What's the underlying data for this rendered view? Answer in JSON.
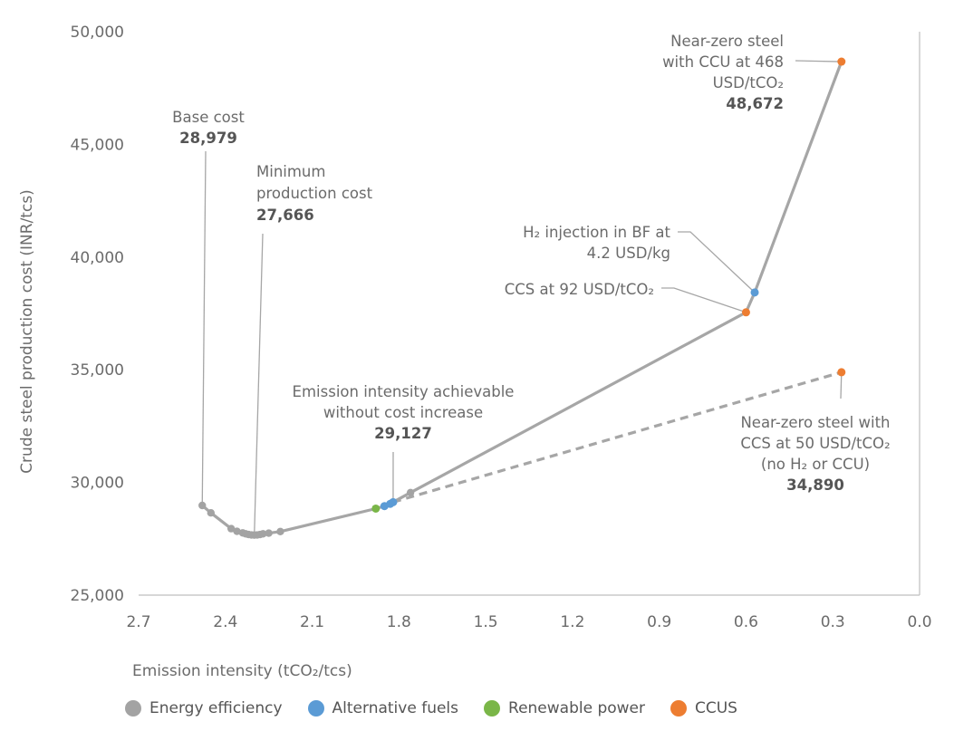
{
  "chart_data": {
    "type": "line",
    "xlabel": "Emission intensity (tCO₂/tcs)",
    "ylabel": "Crude steel production cost (INR/tcs)",
    "xlim": [
      2.7,
      0.0
    ],
    "ylim": [
      25000,
      50000
    ],
    "x_reversed": true,
    "x_ticks": [
      "2.7",
      "2.4",
      "2.1",
      "1.8",
      "1.5",
      "1.2",
      "0.9",
      "0.6",
      "0.3",
      "0.0"
    ],
    "y_ticks": [
      "25,000",
      "30,000",
      "35,000",
      "40,000",
      "45,000",
      "50,000"
    ],
    "grid": false,
    "legend_position": "bottom",
    "colors": {
      "Energy efficiency": "#a3a3a3",
      "Alternative fuels": "#5b9bd5",
      "Renewable power": "#7ab648",
      "CCUS": "#ed7d31",
      "line": "#a6a6a6"
    },
    "legend": [
      {
        "name": "Energy efficiency",
        "color": "#a3a3a3"
      },
      {
        "name": "Alternative fuels",
        "color": "#5b9bd5"
      },
      {
        "name": "Renewable power",
        "color": "#7ab648"
      },
      {
        "name": "CCUS",
        "color": "#ed7d31"
      }
    ],
    "main_curve": [
      {
        "x": 2.48,
        "y": 28979,
        "category": "Energy efficiency"
      },
      {
        "x": 2.45,
        "y": 28650,
        "category": "Energy efficiency"
      },
      {
        "x": 2.38,
        "y": 27950,
        "category": "Energy efficiency"
      },
      {
        "x": 2.36,
        "y": 27830,
        "category": "Energy efficiency"
      },
      {
        "x": 2.34,
        "y": 27760,
        "category": "Energy efficiency"
      },
      {
        "x": 2.33,
        "y": 27720,
        "category": "Energy efficiency"
      },
      {
        "x": 2.32,
        "y": 27690,
        "category": "Energy efficiency"
      },
      {
        "x": 2.31,
        "y": 27670,
        "category": "Energy efficiency"
      },
      {
        "x": 2.3,
        "y": 27666,
        "category": "Energy efficiency"
      },
      {
        "x": 2.29,
        "y": 27670,
        "category": "Energy efficiency"
      },
      {
        "x": 2.28,
        "y": 27690,
        "category": "Energy efficiency"
      },
      {
        "x": 2.27,
        "y": 27720,
        "category": "Energy efficiency"
      },
      {
        "x": 2.25,
        "y": 27750,
        "category": "Energy efficiency"
      },
      {
        "x": 2.21,
        "y": 27820,
        "category": "Energy efficiency"
      },
      {
        "x": 1.88,
        "y": 28840,
        "category": "Renewable power"
      },
      {
        "x": 1.85,
        "y": 28950,
        "category": "Alternative fuels"
      },
      {
        "x": 1.83,
        "y": 29050,
        "category": "Alternative fuels"
      },
      {
        "x": 1.82,
        "y": 29127,
        "category": "Alternative fuels"
      },
      {
        "x": 1.76,
        "y": 29550,
        "category": "Energy efficiency"
      },
      {
        "x": 0.6,
        "y": 37550,
        "category": "CCUS"
      },
      {
        "x": 0.57,
        "y": 38430,
        "category": "Alternative fuels"
      },
      {
        "x": 0.27,
        "y": 48672,
        "category": "CCUS"
      }
    ],
    "dashed_curve": [
      {
        "x": 1.82,
        "y": 29127
      },
      {
        "x": 0.27,
        "y": 34890,
        "category": "CCUS"
      }
    ],
    "annotations": [
      {
        "id": "base",
        "lines": [
          "Base cost"
        ],
        "value": "28,979",
        "x": 2.48,
        "y": 28979
      },
      {
        "id": "min",
        "lines": [
          "Minimum",
          "production cost"
        ],
        "value": "27,666",
        "x": 2.3,
        "y": 27666
      },
      {
        "id": "noincrease",
        "lines": [
          "Emission intensity achievable",
          "without cost increase"
        ],
        "value": "29,127",
        "x": 1.82,
        "y": 29127
      },
      {
        "id": "h2",
        "lines": [
          "H₂ injection in BF at",
          "4.2 USD/kg"
        ],
        "value": "",
        "x": 0.57,
        "y": 38430
      },
      {
        "id": "ccs92",
        "lines": [
          "CCS at 92 USD/tCO₂"
        ],
        "value": "",
        "x": 0.6,
        "y": 37550
      },
      {
        "id": "ccu",
        "lines": [
          "Near-zero steel",
          "with CCU at 468",
          "USD/tCO₂"
        ],
        "value": "48,672",
        "x": 0.27,
        "y": 48672
      },
      {
        "id": "ccs50",
        "lines": [
          "Near-zero steel  with",
          "CCS at 50  USD/tCO₂",
          "(no H₂  or CCU)"
        ],
        "value": "34,890",
        "x": 0.27,
        "y": 34890
      }
    ]
  }
}
